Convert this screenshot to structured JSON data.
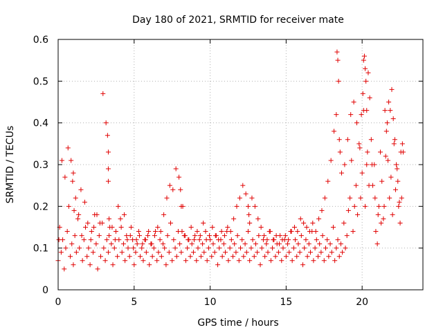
{
  "chart_data": {
    "type": "scatter",
    "title": "Day 180 of 2021, SRMTID for receiver mate",
    "xlabel": "GPS time / hours",
    "ylabel": "SRMTID / TECUs",
    "xlim": [
      0,
      24
    ],
    "ylim": [
      0,
      0.6
    ],
    "x_ticks": [
      0,
      5,
      10,
      15,
      20
    ],
    "y_ticks": [
      0,
      0.1,
      0.2,
      0.3,
      0.4,
      0.5,
      0.6
    ],
    "x_tick_labels": [
      "0",
      "5",
      "10",
      "15",
      "20"
    ],
    "y_tick_labels": [
      "0",
      "0.1",
      "0.2",
      "0.3",
      "0.4",
      "0.5",
      "0.6"
    ],
    "grid": true,
    "marker": "plus",
    "color": "#e00000",
    "series": [
      {
        "name": "SRMTID",
        "x": [
          0.0,
          0.1,
          0.2,
          0.3,
          0.4,
          0.5,
          0.6,
          0.7,
          0.8,
          0.9,
          1.0,
          1.1,
          1.2,
          1.3,
          1.4,
          1.5,
          1.6,
          1.7,
          1.8,
          1.9,
          2.0,
          2.1,
          2.2,
          2.3,
          2.4,
          2.5,
          2.6,
          2.7,
          2.8,
          2.9,
          3.0,
          3.1,
          3.2,
          3.3,
          3.4,
          3.5,
          3.6,
          3.7,
          3.8,
          3.9,
          4.0,
          4.1,
          4.2,
          4.3,
          4.4,
          4.5,
          4.6,
          4.7,
          4.8,
          4.9,
          5.0,
          5.1,
          5.2,
          5.3,
          5.4,
          5.5,
          5.6,
          5.7,
          5.8,
          5.9,
          6.0,
          6.1,
          6.2,
          6.3,
          6.4,
          6.5,
          6.6,
          6.7,
          6.8,
          6.9,
          7.0,
          7.1,
          7.2,
          7.3,
          7.4,
          7.5,
          7.6,
          7.7,
          7.8,
          7.9,
          8.0,
          8.1,
          8.2,
          8.3,
          8.4,
          8.5,
          8.6,
          8.7,
          8.8,
          8.9,
          9.0,
          9.1,
          9.2,
          9.3,
          9.4,
          9.5,
          9.6,
          9.7,
          9.8,
          9.9,
          10.0,
          10.1,
          10.2,
          10.3,
          10.4,
          10.5,
          10.6,
          10.7,
          10.8,
          10.9,
          11.0,
          11.1,
          11.2,
          11.3,
          11.4,
          11.5,
          11.6,
          11.7,
          11.8,
          11.9,
          12.0,
          12.1,
          12.2,
          12.3,
          12.4,
          12.5,
          12.6,
          12.7,
          12.8,
          12.9,
          13.0,
          13.1,
          13.2,
          13.3,
          13.4,
          13.5,
          13.6,
          13.7,
          13.8,
          13.9,
          14.0,
          14.1,
          14.2,
          14.3,
          14.4,
          14.5,
          14.6,
          14.7,
          14.8,
          14.9,
          15.0,
          15.1,
          15.2,
          15.3,
          15.4,
          15.5,
          15.6,
          15.7,
          15.8,
          15.9,
          16.0,
          16.1,
          16.2,
          16.3,
          16.4,
          16.5,
          16.6,
          16.7,
          16.8,
          16.9,
          17.0,
          17.1,
          17.2,
          17.3,
          17.4,
          17.5,
          17.6,
          17.7,
          17.8,
          17.9,
          18.0,
          18.1,
          18.2,
          18.3,
          18.4,
          18.5,
          18.6,
          18.7,
          18.8,
          18.9,
          19.0,
          19.1,
          19.2,
          19.3,
          19.4,
          19.5,
          19.6,
          19.7,
          19.8,
          19.9,
          20.0,
          20.1,
          20.2,
          20.3,
          20.4,
          20.5,
          20.6,
          20.7,
          20.8,
          20.9,
          21.0,
          21.1,
          21.2,
          21.3,
          21.4,
          21.5,
          21.6,
          21.7,
          21.8,
          21.9,
          22.0,
          22.1,
          22.2,
          22.3,
          22.4,
          22.5,
          22.6,
          22.7,
          0.05,
          0.25,
          0.45,
          0.65,
          0.85,
          0.95,
          1.0,
          1.05,
          1.15,
          1.35,
          1.55,
          1.75,
          1.95,
          2.15,
          2.35,
          2.55,
          2.75,
          2.95,
          3.15,
          3.25,
          3.3,
          3.3,
          3.3,
          3.35,
          3.35,
          3.55,
          3.75,
          3.95,
          4.15,
          4.35,
          4.55,
          4.75,
          4.95,
          5.15,
          5.35,
          5.55,
          5.75,
          5.95,
          6.15,
          6.35,
          6.55,
          6.75,
          6.95,
          7.15,
          7.35,
          7.55,
          7.75,
          7.95,
          8.05,
          8.1,
          8.15,
          8.35,
          8.55,
          8.75,
          8.95,
          9.15,
          9.35,
          9.55,
          9.75,
          9.95,
          10.15,
          10.35,
          10.55,
          10.75,
          10.95,
          11.15,
          11.35,
          11.55,
          11.75,
          11.95,
          12.15,
          12.35,
          12.5,
          12.55,
          12.6,
          12.75,
          12.95,
          13.15,
          13.35,
          13.55,
          13.75,
          13.95,
          14.15,
          14.35,
          14.55,
          14.75,
          14.95,
          15.15,
          15.35,
          15.55,
          15.75,
          15.95,
          16.15,
          16.35,
          16.55,
          16.75,
          16.95,
          17.15,
          17.35,
          17.55,
          17.75,
          17.95,
          18.15,
          18.3,
          18.35,
          18.4,
          18.45,
          18.5,
          18.55,
          18.65,
          18.85,
          19.05,
          19.25,
          19.45,
          19.65,
          19.85,
          19.95,
          20.05,
          20.1,
          20.15,
          20.2,
          20.25,
          20.3,
          20.35,
          20.45,
          20.65,
          20.85,
          21.05,
          21.25,
          21.45,
          21.55,
          21.65,
          21.75,
          21.85,
          21.95,
          22.05,
          22.15,
          22.25,
          22.35,
          22.45,
          22.55,
          22.65
        ],
        "y": [
          0.07,
          0.15,
          0.09,
          0.12,
          0.05,
          0.1,
          0.14,
          0.2,
          0.08,
          0.11,
          0.06,
          0.13,
          0.09,
          0.17,
          0.1,
          0.24,
          0.07,
          0.12,
          0.15,
          0.08,
          0.1,
          0.06,
          0.14,
          0.09,
          0.18,
          0.11,
          0.05,
          0.13,
          0.08,
          0.16,
          0.1,
          0.07,
          0.12,
          0.09,
          0.15,
          0.11,
          0.06,
          0.1,
          0.14,
          0.08,
          0.12,
          0.17,
          0.09,
          0.11,
          0.07,
          0.13,
          0.1,
          0.08,
          0.15,
          0.12,
          0.06,
          0.09,
          0.11,
          0.14,
          0.08,
          0.1,
          0.07,
          0.12,
          0.09,
          0.13,
          0.06,
          0.11,
          0.08,
          0.1,
          0.14,
          0.07,
          0.09,
          0.12,
          0.08,
          0.11,
          0.1,
          0.06,
          0.13,
          0.09,
          0.16,
          0.07,
          0.12,
          0.1,
          0.08,
          0.14,
          0.11,
          0.09,
          0.2,
          0.13,
          0.07,
          0.1,
          0.12,
          0.08,
          0.11,
          0.09,
          0.13,
          0.07,
          0.1,
          0.12,
          0.08,
          0.11,
          0.09,
          0.14,
          0.07,
          0.1,
          0.12,
          0.08,
          0.11,
          0.09,
          0.13,
          0.06,
          0.1,
          0.12,
          0.08,
          0.11,
          0.09,
          0.14,
          0.07,
          0.1,
          0.12,
          0.08,
          0.11,
          0.09,
          0.13,
          0.07,
          0.1,
          0.12,
          0.08,
          0.11,
          0.09,
          0.14,
          0.07,
          0.1,
          0.12,
          0.08,
          0.11,
          0.09,
          0.13,
          0.06,
          0.1,
          0.12,
          0.08,
          0.11,
          0.09,
          0.14,
          0.07,
          0.1,
          0.12,
          0.08,
          0.11,
          0.09,
          0.13,
          0.07,
          0.1,
          0.12,
          0.08,
          0.11,
          0.09,
          0.14,
          0.07,
          0.1,
          0.12,
          0.08,
          0.11,
          0.09,
          0.13,
          0.06,
          0.1,
          0.12,
          0.08,
          0.11,
          0.09,
          0.14,
          0.07,
          0.1,
          0.12,
          0.08,
          0.11,
          0.09,
          0.13,
          0.07,
          0.1,
          0.12,
          0.08,
          0.11,
          0.09,
          0.15,
          0.07,
          0.1,
          0.12,
          0.08,
          0.11,
          0.09,
          0.16,
          0.1,
          0.13,
          0.19,
          0.22,
          0.31,
          0.14,
          0.2,
          0.25,
          0.18,
          0.35,
          0.22,
          0.28,
          0.43,
          0.2,
          0.3,
          0.52,
          0.46,
          0.36,
          0.25,
          0.3,
          0.14,
          0.11,
          0.2,
          0.33,
          0.26,
          0.17,
          0.43,
          0.38,
          0.31,
          0.22,
          0.27,
          0.18,
          0.35,
          0.24,
          0.29,
          0.2,
          0.16,
          0.22,
          0.33,
          0.12,
          0.31,
          0.27,
          0.34,
          0.31,
          0.26,
          0.28,
          0.19,
          0.22,
          0.18,
          0.13,
          0.21,
          0.16,
          0.12,
          0.15,
          0.18,
          0.16,
          0.47,
          0.4,
          0.37,
          0.33,
          0.29,
          0.26,
          0.17,
          0.13,
          0.15,
          0.12,
          0.2,
          0.15,
          0.18,
          0.12,
          0.13,
          0.1,
          0.12,
          0.13,
          0.11,
          0.12,
          0.14,
          0.11,
          0.13,
          0.15,
          0.14,
          0.18,
          0.22,
          0.25,
          0.24,
          0.29,
          0.27,
          0.24,
          0.2,
          0.14,
          0.13,
          0.12,
          0.15,
          0.12,
          0.14,
          0.13,
          0.16,
          0.12,
          0.13,
          0.15,
          0.13,
          0.12,
          0.14,
          0.13,
          0.15,
          0.14,
          0.17,
          0.2,
          0.22,
          0.25,
          0.23,
          0.2,
          0.18,
          0.16,
          0.22,
          0.2,
          0.17,
          0.15,
          0.13,
          0.12,
          0.14,
          0.12,
          0.13,
          0.11,
          0.12,
          0.13,
          0.12,
          0.14,
          0.15,
          0.14,
          0.17,
          0.16,
          0.15,
          0.14,
          0.16,
          0.14,
          0.17,
          0.19,
          0.22,
          0.26,
          0.31,
          0.38,
          0.42,
          0.57,
          0.55,
          0.5,
          0.36,
          0.33,
          0.28,
          0.3,
          0.36,
          0.42,
          0.45,
          0.4,
          0.34,
          0.42,
          0.47,
          0.55,
          0.56,
          0.53,
          0.5,
          0.43,
          0.33,
          0.25,
          0.3,
          0.22,
          0.18,
          0.16,
          0.2,
          0.32,
          0.4,
          0.45,
          0.43,
          0.48,
          0.41,
          0.36,
          0.3,
          0.26,
          0.21,
          0.33,
          0.35
        ]
      }
    ]
  }
}
